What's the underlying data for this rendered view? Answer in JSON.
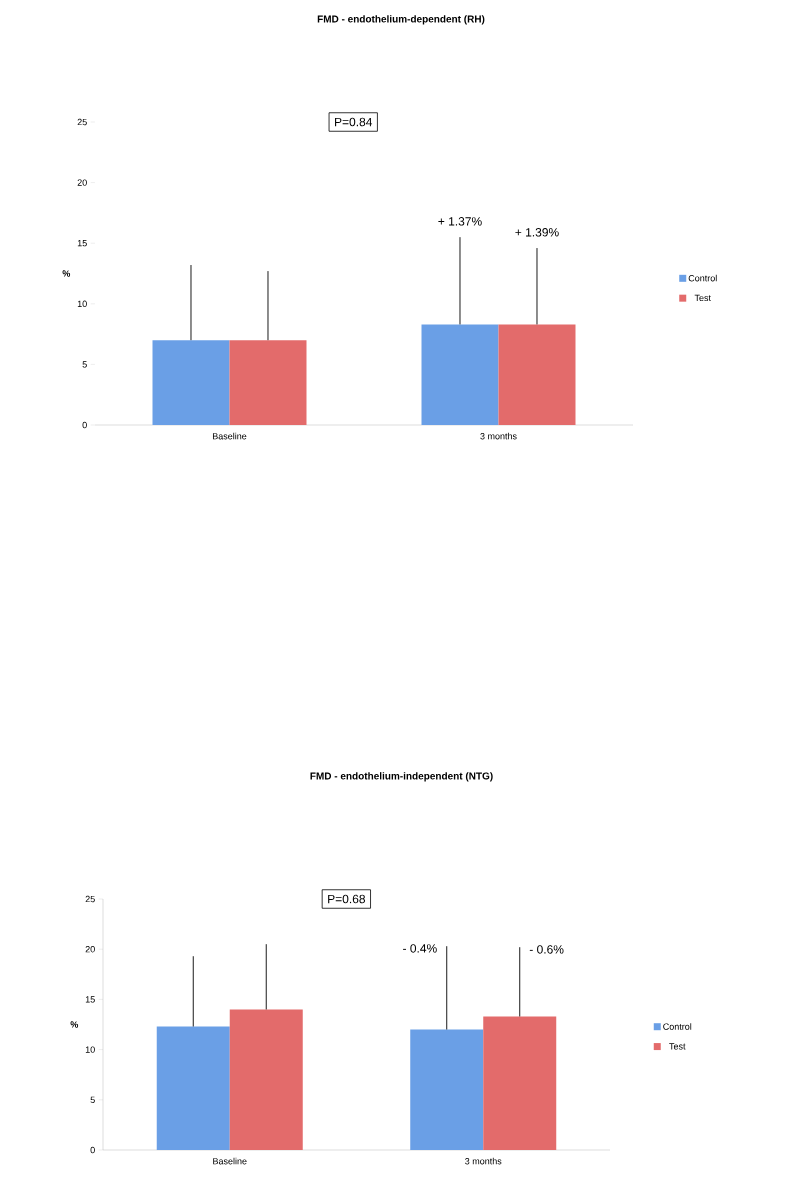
{
  "chart_data": [
    {
      "type": "bar",
      "title": "FMD - endothelium-dependent  (RH)",
      "ylabel": "%",
      "categories": [
        "Baseline",
        "3 months"
      ],
      "series": [
        {
          "name": "Control",
          "color": "#6a9fe6",
          "values": [
            7.0,
            8.3
          ],
          "errors": [
            [
              7.0,
              13.2
            ],
            [
              8.3,
              15.5
            ]
          ]
        },
        {
          "name": "Test",
          "color": "#e36b6b",
          "values": [
            7.0,
            8.3
          ],
          "errors": [
            [
              7.0,
              12.7
            ],
            [
              8.3,
              14.6
            ]
          ]
        }
      ],
      "ylim": [
        0,
        25
      ],
      "yticks": [
        0,
        5,
        10,
        15,
        20,
        25
      ],
      "legend": "right",
      "annotations": [
        "P=0.84",
        "+ 1.37%",
        "+ 1.39%"
      ]
    },
    {
      "type": "bar",
      "title": "FMD - endothelium-independent  (NTG)",
      "ylabel": "%",
      "categories": [
        "Baseline",
        "3 months"
      ],
      "series": [
        {
          "name": "Control",
          "color": "#6a9fe6",
          "values": [
            12.3,
            12.0
          ],
          "errors": [
            [
              12.3,
              19.3
            ],
            [
              12.0,
              20.3
            ]
          ]
        },
        {
          "name": "Test",
          "color": "#e36b6b",
          "values": [
            14.0,
            13.3
          ],
          "errors": [
            [
              14.0,
              20.5
            ],
            [
              13.3,
              20.2
            ]
          ]
        }
      ],
      "ylim": [
        0,
        25
      ],
      "yticks": [
        0,
        5,
        10,
        15,
        20,
        25
      ],
      "legend": "right",
      "annotations": [
        "P=0.68",
        "- 0.4%",
        "- 0.6%"
      ]
    }
  ]
}
